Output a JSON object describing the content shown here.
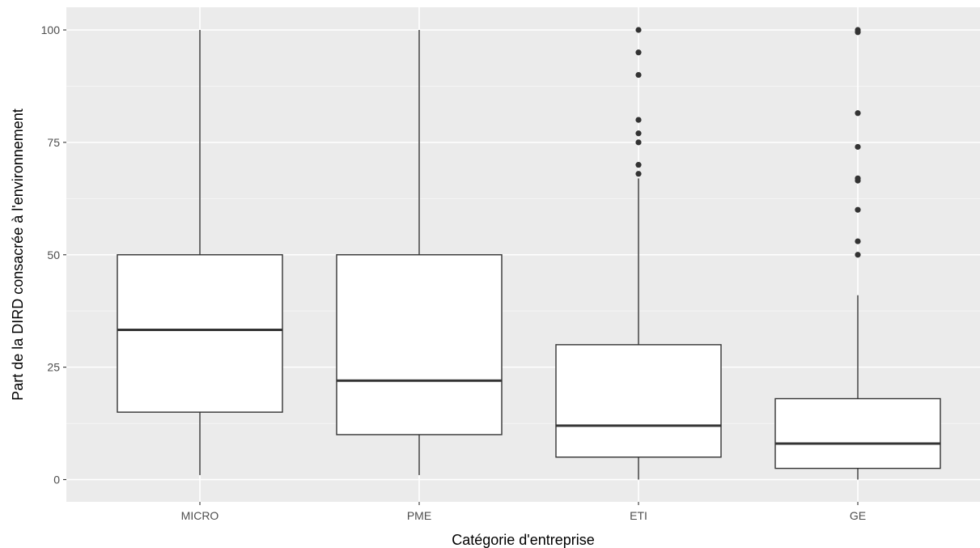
{
  "chart_data": {
    "type": "boxplot",
    "xlabel": "Catégorie d'entreprise",
    "ylabel": "Part de la DIRD consacrée à l'environnement",
    "categories": [
      "MICRO",
      "PME",
      "ETI",
      "GE"
    ],
    "ylim": [
      -5,
      105
    ],
    "yticks": [
      0,
      25,
      50,
      75,
      100
    ],
    "grid": true,
    "boxes": [
      {
        "category": "MICRO",
        "whisker_low": 1,
        "q1": 15,
        "median": 33.3,
        "q3": 50,
        "whisker_high": 100,
        "outliers": []
      },
      {
        "category": "PME",
        "whisker_low": 1,
        "q1": 10,
        "median": 22,
        "q3": 50,
        "whisker_high": 100,
        "outliers": []
      },
      {
        "category": "ETI",
        "whisker_low": 0,
        "q1": 5,
        "median": 12,
        "q3": 30,
        "whisker_high": 67,
        "outliers": [
          68,
          70,
          75,
          77,
          80,
          90,
          95,
          100
        ]
      },
      {
        "category": "GE",
        "whisker_low": 0,
        "q1": 2.5,
        "median": 8,
        "q3": 18,
        "whisker_high": 41,
        "outliers": [
          50,
          53,
          60,
          66.5,
          67,
          74,
          81.5,
          99.5,
          100
        ]
      }
    ],
    "colors": {
      "panel_background": "#ebebeb",
      "grid_major": "#ffffff",
      "grid_minor": "#f5f5f5",
      "box_fill": "#ffffff",
      "box_line": "#333333",
      "points": "#333333",
      "tick_text": "#4d4d4d"
    }
  }
}
